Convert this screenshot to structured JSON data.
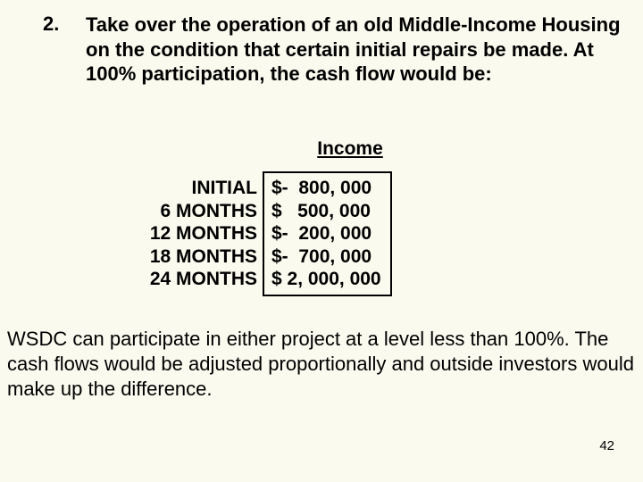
{
  "background_color": "#fafaef",
  "text_color": "#000000",
  "fonts": {
    "body": "Arial",
    "size_main": 22,
    "size_table": 21,
    "size_slidenum": 15
  },
  "item_number": "2.",
  "item_text": "Take over the operation of an old Middle-Income Housing on the condition that certain initial repairs be made.  At 100% participation, the cash flow would be:",
  "table": {
    "type": "table",
    "header": "Income",
    "row_labels": [
      "INITIAL",
      "6 MONTHS",
      "12 MONTHS",
      "18 MONTHS",
      "24 MONTHS"
    ],
    "values_pre": [
      "$-  800, 000",
      "$   500, 000",
      "$-  200, 000",
      "$-  700, 000",
      "$ 2, 000, 000"
    ],
    "border_color": "#000000",
    "border_width": 2.5
  },
  "footer_text": "WSDC can participate in either project at a level less than 100%.  The cash flows would be adjusted proportionally and outside investors would make up the difference.",
  "slide_number": "42"
}
